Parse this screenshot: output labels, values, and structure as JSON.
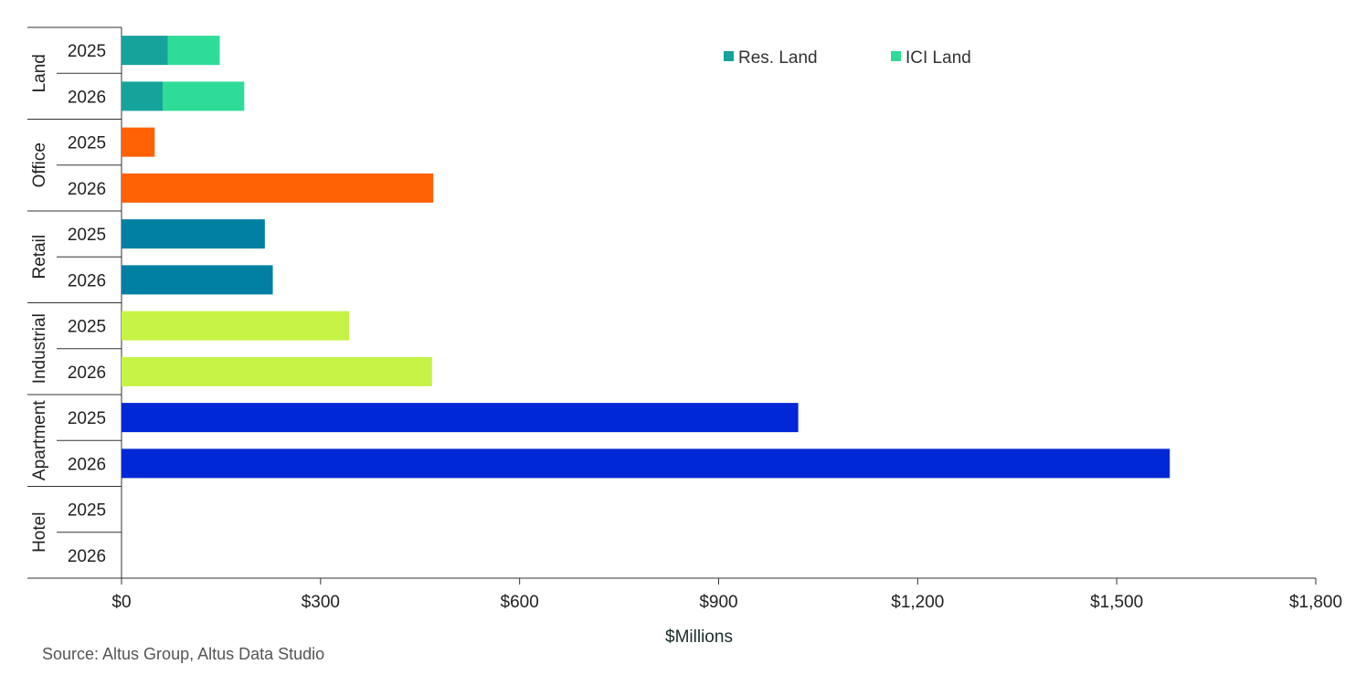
{
  "chart_data": {
    "type": "bar",
    "orientation": "horizontal",
    "stacked": true,
    "xlabel": "$Millions",
    "xlim": [
      0,
      1800
    ],
    "x_ticks": [
      {
        "value": 0,
        "label": "$0"
      },
      {
        "value": 300,
        "label": "$300"
      },
      {
        "value": 600,
        "label": "$600"
      },
      {
        "value": 900,
        "label": "$900"
      },
      {
        "value": 1200,
        "label": "$1,200"
      },
      {
        "value": 1500,
        "label": "$1,500"
      },
      {
        "value": 1800,
        "label": "$1,800"
      }
    ],
    "grid": false,
    "legend": {
      "placement": "top-right",
      "entries": [
        {
          "label": "Res. Land",
          "color": "#16a39b"
        },
        {
          "label": "ICI Land",
          "color": "#2edc98"
        }
      ]
    },
    "groups": [
      {
        "name": "Land",
        "rows": [
          {
            "year": "2025",
            "segments": [
              {
                "series": "Res. Land",
                "value": 70,
                "color": "#16a39b"
              },
              {
                "series": "ICI Land",
                "value": 78,
                "color": "#2edc98"
              }
            ]
          },
          {
            "year": "2026",
            "segments": [
              {
                "series": "Res. Land",
                "value": 62,
                "color": "#16a39b"
              },
              {
                "series": "ICI Land",
                "value": 123,
                "color": "#2edc98"
              }
            ]
          }
        ]
      },
      {
        "name": "Office",
        "rows": [
          {
            "year": "2025",
            "segments": [
              {
                "value": 50,
                "color": "#ff6105"
              }
            ]
          },
          {
            "year": "2026",
            "segments": [
              {
                "value": 470,
                "color": "#ff6105"
              }
            ]
          }
        ]
      },
      {
        "name": "Retail",
        "rows": [
          {
            "year": "2025",
            "segments": [
              {
                "value": 216,
                "color": "#0180a4"
              }
            ]
          },
          {
            "year": "2026",
            "segments": [
              {
                "value": 228,
                "color": "#0180a4"
              }
            ]
          }
        ]
      },
      {
        "name": "Industrial",
        "rows": [
          {
            "year": "2025",
            "segments": [
              {
                "value": 343,
                "color": "#c6f345"
              }
            ]
          },
          {
            "year": "2026",
            "segments": [
              {
                "value": 468,
                "color": "#c6f345"
              }
            ]
          }
        ]
      },
      {
        "name": "Apartment",
        "rows": [
          {
            "year": "2025",
            "segments": [
              {
                "value": 1020,
                "color": "#0128d7"
              }
            ]
          },
          {
            "year": "2026",
            "segments": [
              {
                "value": 1580,
                "color": "#0128d7"
              }
            ]
          }
        ]
      },
      {
        "name": "Hotel",
        "rows": [
          {
            "year": "2025",
            "segments": []
          },
          {
            "year": "2026",
            "segments": []
          }
        ]
      }
    ]
  },
  "source_text": "Source:  Altus Group, Altus Data Studio"
}
